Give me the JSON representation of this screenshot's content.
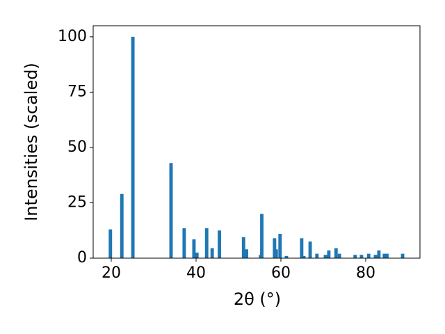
{
  "chart_data": {
    "type": "bar",
    "x": [
      19.8,
      22.5,
      25.1,
      34.1,
      37.2,
      39.5,
      40.2,
      42.5,
      43.8,
      45.5,
      51.2,
      51.9,
      55.2,
      55.5,
      58.5,
      58.9,
      59.8,
      61.3,
      64.9,
      65.4,
      66.9,
      68.5,
      70.5,
      71.3,
      73.0,
      73.8,
      77.5,
      79.0,
      80.7,
      82.3,
      83.1,
      84.4,
      85.0,
      88.7
    ],
    "values": [
      13,
      29,
      100,
      43,
      13.5,
      8.5,
      2.5,
      13.5,
      4.5,
      12.5,
      9.5,
      4,
      1.5,
      20,
      9,
      4,
      11,
      1,
      9,
      1,
      7.5,
      2,
      1.5,
      3.5,
      4.5,
      2,
      1.5,
      1.5,
      2,
      1.5,
      3.5,
      2,
      2,
      2
    ],
    "color": "#1f77b4",
    "xlabel": "2θ (°)",
    "ylabel": "Intensities (scaled)",
    "xlim": [
      15.74,
      92.79
    ],
    "ylim": [
      0,
      105
    ],
    "xticks": [
      20,
      40,
      60,
      80
    ],
    "yticks": [
      0,
      25,
      50,
      75,
      100
    ]
  }
}
